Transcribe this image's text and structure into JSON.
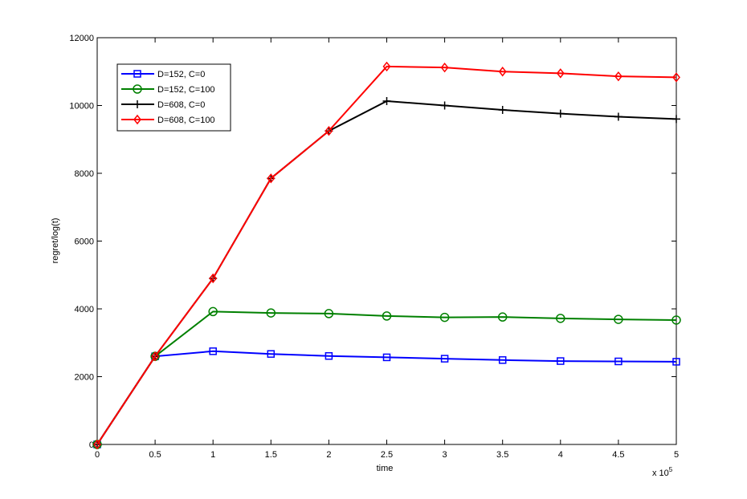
{
  "chart_data": {
    "type": "line",
    "xlabel": "time",
    "ylabel": "regret/log(t)",
    "x_exponent_label": "x 10",
    "x_exponent_power": "5",
    "x": [
      0,
      0.5,
      1,
      1.5,
      2,
      2.5,
      3,
      3.5,
      4,
      4.5,
      5
    ],
    "x_tick_labels": [
      "0",
      "0.5",
      "1",
      "1.5",
      "2",
      "2.5",
      "3",
      "3.5",
      "4",
      "4.5",
      "5"
    ],
    "y_tick_values": [
      0,
      2000,
      4000,
      6000,
      8000,
      10000,
      12000
    ],
    "y_tick_labels": [
      "0",
      "2000",
      "4000",
      "6000",
      "8000",
      "10000",
      "12000"
    ],
    "xlim": [
      0,
      5
    ],
    "ylim": [
      0,
      12000
    ],
    "grid": false,
    "legend_position": "top-left",
    "series": [
      {
        "name": "D=152, C=0",
        "color": "#0000ff",
        "marker": "square",
        "values": [
          0,
          2600,
          2750,
          2670,
          2610,
          2570,
          2530,
          2490,
          2460,
          2450,
          2440
        ]
      },
      {
        "name": "D=152, C=100",
        "color": "#008000",
        "marker": "circle",
        "values": [
          0,
          2600,
          3920,
          3880,
          3860,
          3790,
          3750,
          3760,
          3720,
          3690,
          3670
        ]
      },
      {
        "name": "D=608, C=0",
        "color": "#000000",
        "marker": "plus",
        "values": [
          0,
          2600,
          4900,
          7850,
          9250,
          10130,
          10000,
          9870,
          9760,
          9670,
          9600
        ]
      },
      {
        "name": "D=608, C=100",
        "color": "#ff0000",
        "marker": "diamond",
        "values": [
          0,
          2600,
          4900,
          7850,
          9250,
          11150,
          11120,
          11000,
          10950,
          10860,
          10830
        ]
      }
    ]
  }
}
